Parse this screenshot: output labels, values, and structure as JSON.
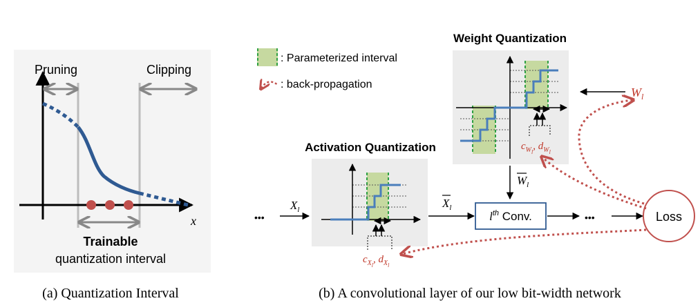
{
  "panel_a": {
    "pruning": "Pruning",
    "clipping": "Clipping",
    "x_axis": "x",
    "trainable": "Trainable",
    "interval": "quantization interval",
    "caption": "(a) Quantization Interval"
  },
  "panel_b": {
    "legend_interval": ": Parameterized interval",
    "legend_backprop": ": back-propagation",
    "weight_title": "Weight Quantization",
    "activation_title": "Activation Quantization",
    "ellipsis": "•••",
    "loss": "Loss",
    "caption": "(b) A convolutional layer of our low bit-width network"
  },
  "colors": {
    "curve": "#2f5a92",
    "dot": "#c0504d",
    "interval_fill": "#c6d9a0",
    "interval_edge": "#2ea043",
    "step": "#4a7ebb",
    "red_text": "#c0392b",
    "loss_stroke": "#c0504d",
    "box_bg": "#ececec"
  }
}
